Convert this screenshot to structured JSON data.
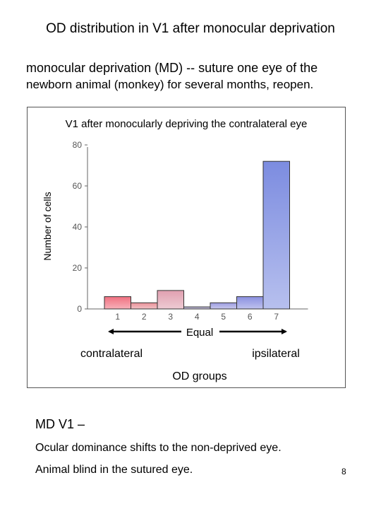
{
  "slide": {
    "title": "OD distribution in V1 after monocular deprivation",
    "definition_line1": "monocular deprivation (MD) -- suture one eye of the",
    "definition_line2": "newborn animal (monkey) for several months, reopen.",
    "heading": "MD V1 –",
    "conclusion1": "Ocular dominance shifts to the non-deprived eye.",
    "conclusion2": "Animal blind in the sutured eye.",
    "page_number": "8"
  },
  "chart_data": {
    "type": "bar",
    "title": "V1 after monocularly depriving the contralateral eye",
    "xlabel": "OD groups",
    "ylabel": "Number of cells",
    "categories": [
      "1",
      "2",
      "3",
      "4",
      "5",
      "6",
      "7"
    ],
    "values": [
      6,
      3,
      9,
      1,
      3,
      6,
      72
    ],
    "ylim": [
      0,
      80
    ],
    "yticks": [
      "0",
      "20",
      "40",
      "60",
      "80"
    ],
    "annotations": {
      "equal": "Equal",
      "left": "contralateral",
      "right": "ipsilateral"
    },
    "bar_colors": [
      "#f07080",
      "#e89098",
      "#e0a0b0",
      "#b0a8d0",
      "#9c9ce0",
      "#8a90e0",
      "#7c8ce0"
    ],
    "bar_gradient_bottom": "#ffffff",
    "grid": false
  }
}
